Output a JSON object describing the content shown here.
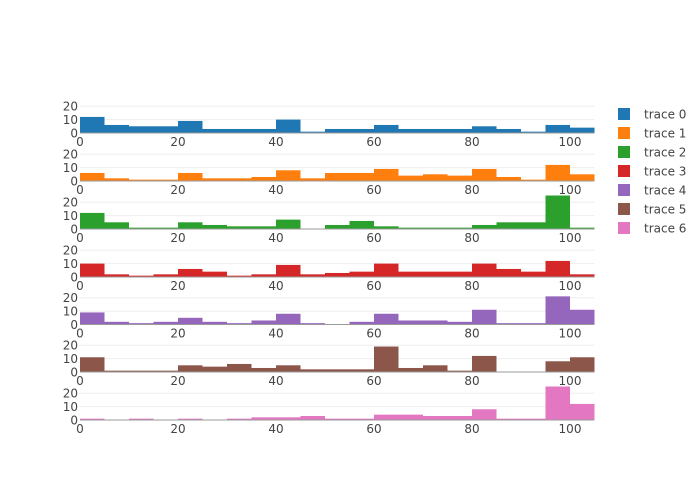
{
  "chart_data": {
    "type": "bar",
    "subtype": "histogram-stacked-subplots",
    "bin_size": 5,
    "bin_start": 0,
    "xlim": [
      0,
      105
    ],
    "ylim": [
      0,
      25
    ],
    "x_ticks": [
      "0",
      "20",
      "40",
      "60",
      "80",
      "100"
    ],
    "x_tick_values": [
      0,
      20,
      40,
      60,
      80,
      100
    ],
    "y_ticks": [
      "0",
      "10",
      "20"
    ],
    "y_tick_values": [
      0,
      10,
      20
    ],
    "grid": true,
    "legend_position": "right",
    "series": [
      {
        "name": "trace 0",
        "color": "#1f77b4",
        "values": [
          12,
          6,
          5,
          5,
          9,
          3,
          3,
          3,
          10,
          1,
          3,
          3,
          6,
          3,
          3,
          3,
          5,
          3,
          1,
          6,
          4
        ]
      },
      {
        "name": "trace 1",
        "color": "#ff7f0e",
        "values": [
          6,
          2,
          1,
          1,
          6,
          2,
          2,
          3,
          8,
          2,
          6,
          6,
          9,
          4,
          5,
          4,
          9,
          3,
          1,
          12,
          5
        ]
      },
      {
        "name": "trace 2",
        "color": "#2ca02c",
        "values": [
          12,
          5,
          1,
          1,
          5,
          3,
          2,
          2,
          7,
          0,
          3,
          6,
          2,
          1,
          1,
          1,
          3,
          5,
          5,
          25,
          1
        ]
      },
      {
        "name": "trace 3",
        "color": "#d62728",
        "values": [
          10,
          2,
          1,
          2,
          6,
          4,
          1,
          2,
          9,
          2,
          3,
          4,
          10,
          4,
          4,
          4,
          10,
          6,
          4,
          12,
          2
        ]
      },
      {
        "name": "trace 4",
        "color": "#9467bd",
        "values": [
          9,
          2,
          1,
          2,
          5,
          2,
          1,
          3,
          8,
          1,
          0,
          2,
          8,
          3,
          3,
          2,
          11,
          1,
          1,
          21,
          11
        ]
      },
      {
        "name": "trace 5",
        "color": "#8c564b",
        "values": [
          11,
          1,
          1,
          1,
          5,
          4,
          6,
          3,
          5,
          2,
          2,
          2,
          19,
          3,
          5,
          1,
          12,
          0,
          0,
          8,
          11
        ]
      },
      {
        "name": "trace 6",
        "color": "#e377c2",
        "values": [
          1,
          0,
          1,
          0,
          1,
          0,
          1,
          2,
          2,
          3,
          1,
          1,
          4,
          4,
          3,
          3,
          8,
          1,
          1,
          25,
          12
        ]
      }
    ]
  }
}
